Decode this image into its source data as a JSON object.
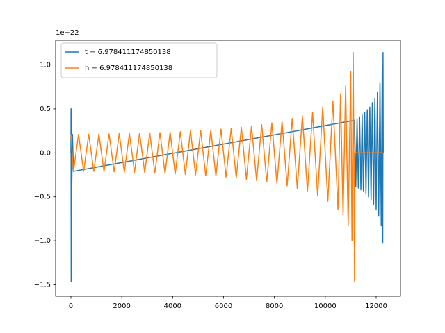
{
  "chart_data": {
    "type": "line",
    "y_offset_label": "1e−22",
    "xlim": [
      -601,
      12957
    ],
    "ylim": [
      -1.63,
      1.28
    ],
    "xticks": [
      0,
      2000,
      4000,
      6000,
      8000,
      10000,
      12000
    ],
    "yticks": [
      {
        "value": -1.5,
        "label": "−1.5"
      },
      {
        "value": -1,
        "label": "−1.0"
      },
      {
        "value": -0.5,
        "label": "−0.5"
      },
      {
        "value": 0,
        "label": "0.0"
      },
      0.5,
      {
        "value": 1,
        "label": "1.0"
      }
    ],
    "legend": "upper left",
    "series": [
      {
        "name": "t = 6.978411174850138",
        "color": "#1f77b4",
        "x": [
          0,
          5,
          10,
          20,
          30,
          60,
          100,
          11150,
          11200,
          11250,
          11300,
          11350,
          11400,
          11450,
          11500,
          11550,
          11600,
          11650,
          11700,
          11750,
          11800,
          11850,
          11900,
          11950,
          12000,
          12050,
          12100,
          12150,
          12200,
          12240,
          12260,
          12270,
          12280
        ],
        "values": [
          0,
          0.5,
          -1.46,
          0.5,
          -0.48,
          0.21,
          -0.21,
          0.37,
          -0.38,
          0.39,
          -0.4,
          0.41,
          -0.42,
          0.43,
          -0.44,
          0.46,
          -0.47,
          0.49,
          -0.5,
          0.52,
          -0.54,
          0.57,
          -0.59,
          0.62,
          -0.64,
          0.69,
          -0.72,
          0.8,
          -0.83,
          1.0,
          -1.02,
          1.14,
          0
        ]
      },
      {
        "name": "h = 6.978411174850138",
        "color": "#ff7f0e",
        "x": [
          0,
          100,
          300,
          500,
          700,
          900,
          1100,
          1300,
          1500,
          1700,
          1900,
          2100,
          2300,
          2500,
          2700,
          2900,
          3100,
          3300,
          3500,
          3700,
          3900,
          4100,
          4300,
          4500,
          4700,
          4900,
          5100,
          5300,
          5500,
          5700,
          5900,
          6100,
          6300,
          6500,
          6700,
          6900,
          7100,
          7300,
          7500,
          7700,
          7900,
          8100,
          8300,
          8500,
          8700,
          8900,
          9100,
          9300,
          9500,
          9700,
          9900,
          10100,
          10300,
          10500,
          10600,
          10700,
          10800,
          10900,
          11000,
          11050,
          11100,
          11150,
          11160,
          12280
        ],
        "values": [
          0.21,
          -0.21,
          0.21,
          -0.21,
          0.21,
          -0.21,
          0.215,
          -0.215,
          0.215,
          -0.215,
          0.22,
          -0.22,
          0.22,
          -0.22,
          0.225,
          -0.225,
          0.225,
          -0.23,
          0.23,
          -0.235,
          0.235,
          -0.24,
          0.24,
          -0.245,
          0.25,
          -0.25,
          0.255,
          -0.26,
          0.26,
          -0.265,
          0.27,
          -0.275,
          0.28,
          -0.285,
          0.29,
          -0.3,
          0.305,
          -0.315,
          0.32,
          -0.33,
          0.34,
          -0.35,
          0.36,
          -0.375,
          0.39,
          -0.405,
          0.42,
          -0.44,
          0.46,
          -0.49,
          0.52,
          -0.55,
          0.59,
          -0.64,
          0.67,
          -0.71,
          0.76,
          -0.83,
          0.92,
          -1.0,
          1.14,
          -1.46,
          0,
          0
        ]
      }
    ]
  }
}
